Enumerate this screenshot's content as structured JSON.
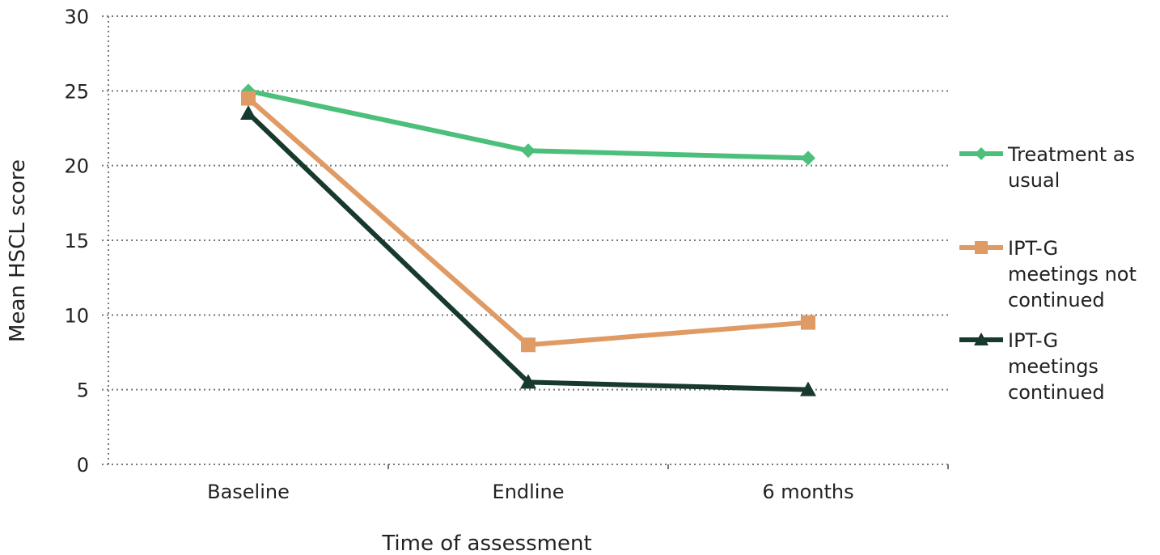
{
  "chart_data": {
    "type": "line",
    "xlabel": "Time of assessment",
    "ylabel": "Mean HSCL score",
    "ylim": [
      0,
      30
    ],
    "yticks": [
      "0",
      "5",
      "10",
      "15",
      "20",
      "25",
      "30"
    ],
    "categories": [
      "Baseline",
      "Endline",
      "6 months"
    ],
    "grid": "horizontal dotted",
    "legend_position": "right",
    "series": [
      {
        "name": "Treatment as usual",
        "name_lines": [
          "Treatment as",
          "usual"
        ],
        "values": [
          25,
          21,
          20.5
        ],
        "color": "#4CC07A",
        "marker": "diamond"
      },
      {
        "name": "IPT-G meetings not continued",
        "name_lines": [
          "IPT-G",
          "meetings not",
          "continued"
        ],
        "values": [
          24.5,
          8,
          9.5
        ],
        "color": "#E09A63",
        "marker": "square"
      },
      {
        "name": "IPT-G meetings continued",
        "name_lines": [
          "IPT-G",
          "meetings",
          "continued"
        ],
        "values": [
          23.5,
          5.5,
          5
        ],
        "color": "#173A2C",
        "marker": "triangle"
      }
    ]
  }
}
